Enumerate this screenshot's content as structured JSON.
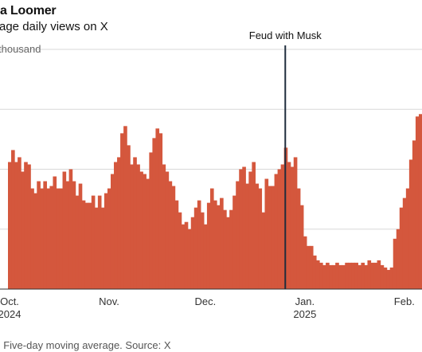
{
  "chart_data": {
    "type": "area",
    "title": "ra Loomer",
    "subtitle": "rage daily views on X",
    "ylabel_tick": "thousand",
    "annotation": "Feud with Musk",
    "note": ": Five-day moving average. Source: X",
    "x_ticks": [
      {
        "label": "Oct.",
        "sub": "2024",
        "index": 0
      },
      {
        "label": "Nov.",
        "sub": "",
        "index": 31
      },
      {
        "label": "Dec.",
        "sub": "",
        "index": 61
      },
      {
        "label": "Jan.",
        "sub": "2025",
        "index": 92
      },
      {
        "label": "Feb.",
        "sub": "",
        "index": 123
      }
    ],
    "annotation_index": 86.4,
    "ylim": [
      0,
      1
    ],
    "gridlines": [
      0.25,
      0.5,
      0.75,
      1.0
    ],
    "colors": {
      "fill": "#d4573d",
      "line": "#1f2d3d",
      "grid": "#d8d8d8"
    },
    "values": [
      0.53,
      0.58,
      0.53,
      0.55,
      0.49,
      0.53,
      0.52,
      0.42,
      0.4,
      0.45,
      0.42,
      0.45,
      0.42,
      0.43,
      0.47,
      0.42,
      0.42,
      0.49,
      0.45,
      0.5,
      0.45,
      0.39,
      0.44,
      0.37,
      0.36,
      0.36,
      0.39,
      0.34,
      0.39,
      0.34,
      0.4,
      0.42,
      0.48,
      0.53,
      0.55,
      0.65,
      0.68,
      0.6,
      0.52,
      0.55,
      0.52,
      0.49,
      0.48,
      0.46,
      0.57,
      0.63,
      0.67,
      0.65,
      0.52,
      0.49,
      0.45,
      0.43,
      0.37,
      0.32,
      0.27,
      0.28,
      0.25,
      0.3,
      0.34,
      0.37,
      0.32,
      0.27,
      0.36,
      0.42,
      0.37,
      0.35,
      0.38,
      0.33,
      0.3,
      0.33,
      0.39,
      0.45,
      0.5,
      0.51,
      0.44,
      0.49,
      0.53,
      0.44,
      0.42,
      0.32,
      0.46,
      0.43,
      0.43,
      0.48,
      0.5,
      0.52,
      0.59,
      0.53,
      0.51,
      0.55,
      0.42,
      0.35,
      0.22,
      0.18,
      0.18,
      0.14,
      0.12,
      0.11,
      0.1,
      0.11,
      0.1,
      0.1,
      0.11,
      0.1,
      0.1,
      0.11,
      0.11,
      0.11,
      0.11,
      0.1,
      0.11,
      0.1,
      0.12,
      0.11,
      0.11,
      0.12,
      0.1,
      0.09,
      0.08,
      0.09,
      0.21,
      0.25,
      0.34,
      0.38,
      0.42,
      0.54,
      0.62,
      0.72,
      0.73
    ]
  }
}
